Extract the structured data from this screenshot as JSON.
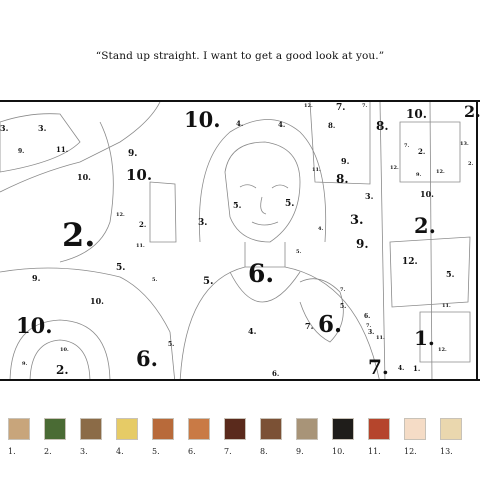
{
  "caption": "“Stand up straight.  I want to get a good look at you.”",
  "region_numbers": [
    "10.",
    "2.",
    "2.",
    "2.",
    "10.",
    "6.",
    "6.",
    "6.",
    "10.",
    "1.",
    "7.",
    "10.",
    "3.",
    "2.",
    "3.",
    "3.",
    "3.",
    "2.",
    "9.",
    "11.",
    "10.",
    "9.",
    "9.",
    "9.",
    "5.",
    "12.",
    "8.",
    "4.",
    "3.",
    "5.",
    "5.",
    "4.",
    "8.",
    "5.",
    "4.",
    "7.",
    "5.",
    "4.",
    "6.",
    "1.",
    "10.",
    "5.",
    "9.",
    "10.",
    "10.",
    "7.",
    "9.",
    "12.",
    "8.",
    "5.",
    "11.",
    "2.",
    "9.",
    "3.",
    "7.",
    "6.",
    "4.",
    "12.",
    "13.",
    "5.",
    "11.",
    "5.",
    "7.",
    "7.",
    "12.",
    "12.",
    "2.",
    "11.",
    "7.",
    "11.",
    "12."
  ],
  "palette": [
    {
      "label": "1.",
      "color": "#c8a57b"
    },
    {
      "label": "2.",
      "color": "#4a6b34"
    },
    {
      "label": "3.",
      "color": "#8b6b47"
    },
    {
      "label": "4.",
      "color": "#e6cb66"
    },
    {
      "label": "5.",
      "color": "#b86a3a"
    },
    {
      "label": "6.",
      "color": "#c97a45"
    },
    {
      "label": "7.",
      "color": "#5a2a1c"
    },
    {
      "label": "8.",
      "color": "#7b5135"
    },
    {
      "label": "9.",
      "color": "#a89478"
    },
    {
      "label": "10.",
      "color": "#1f1d1a"
    },
    {
      "label": "11.",
      "color": "#b5452c"
    },
    {
      "label": "12.",
      "color": "#f5dcc6"
    },
    {
      "label": "13.",
      "color": "#ead7ae"
    }
  ]
}
